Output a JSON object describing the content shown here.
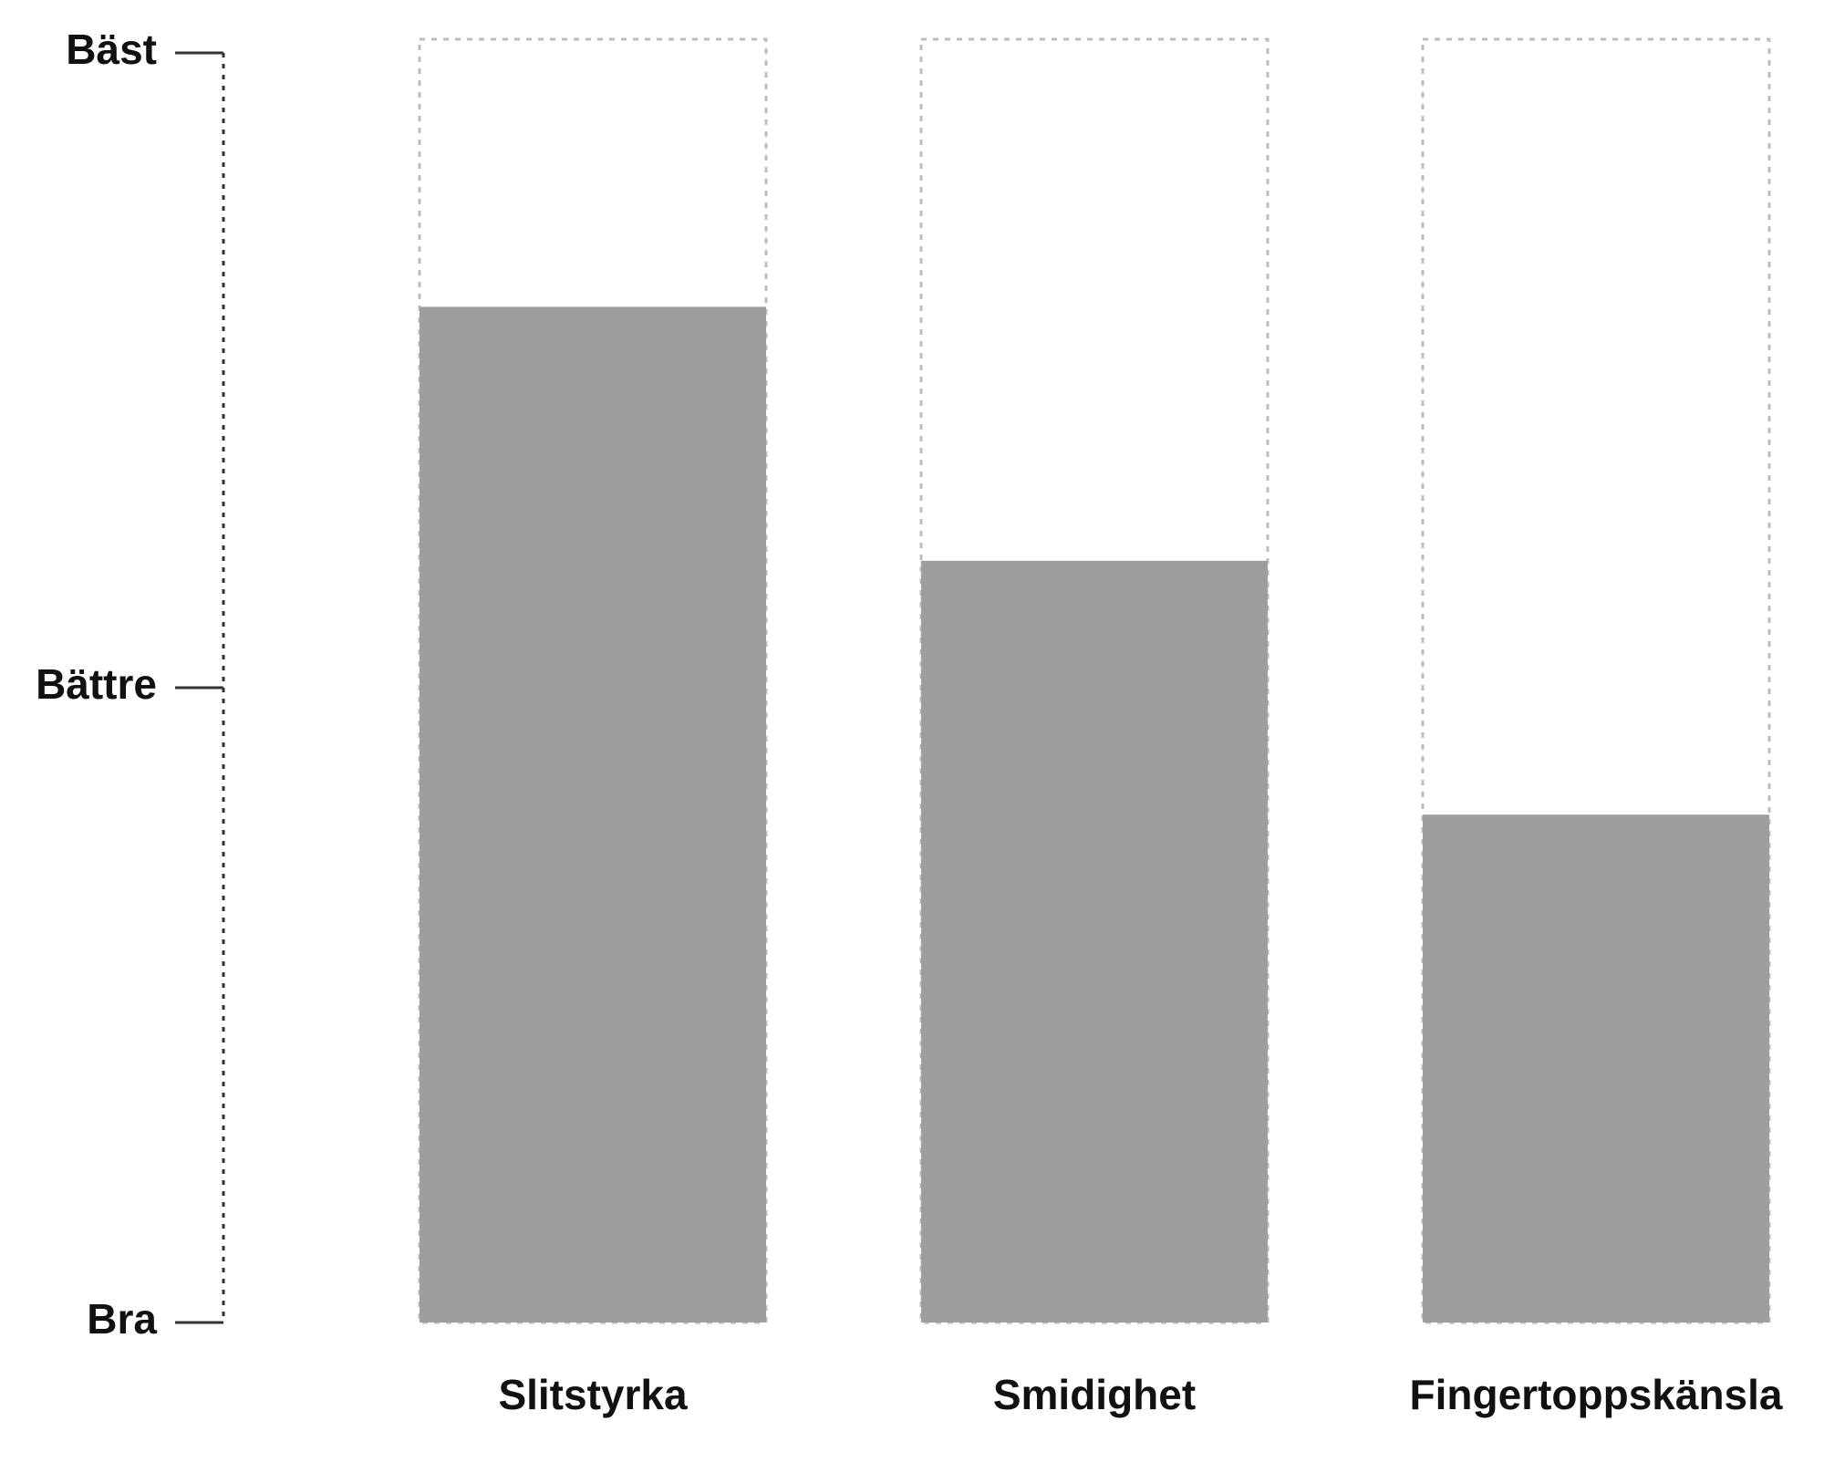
{
  "chart_data": {
    "type": "bar",
    "title": "",
    "xlabel": "",
    "ylabel": "",
    "categories": [
      "Slitstyrka",
      "Smidighet",
      "Fingertoppskänsla"
    ],
    "values": [
      0.8,
      0.6,
      0.4
    ],
    "ylim": [
      0,
      1
    ],
    "y_ticks": [
      {
        "label": "Bra",
        "value": 0
      },
      {
        "label": "Bättre",
        "value": 0.5
      },
      {
        "label": "Bäst",
        "value": 1
      }
    ],
    "grid": false,
    "legend": "none",
    "colors": {
      "bar_fill": "#9e9e9e",
      "bar_outline": "#bdbdbd",
      "axis": "#333333",
      "text": "#111111"
    }
  }
}
